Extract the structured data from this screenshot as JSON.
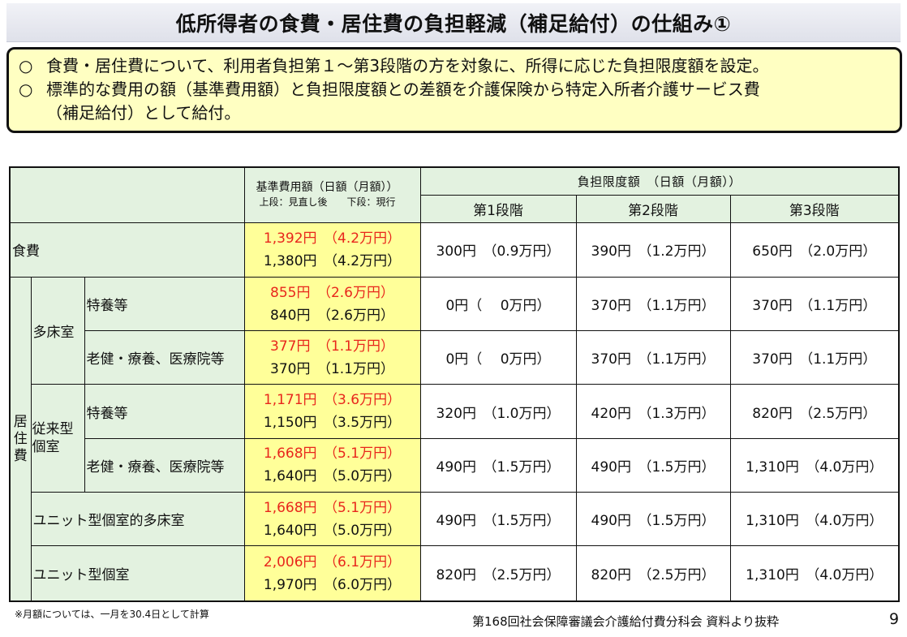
{
  "title": "低所得者の食費・居住費の負担軽減（補足給付）の仕組み①",
  "summary": {
    "bullet": "○",
    "line1": "食費・居住費について、利用者負担第１～第3段階の方を対象に、所得に応じた負担限度額を設定。",
    "line2": "標準的な費用の額（基準費用額）と負担限度額との差額を介護保険から特定入所者介護サービス費",
    "line2_cont": "（補足給付）として給付。"
  },
  "table": {
    "head_std": "基準費用額（日額（月額））",
    "head_std_note": "上段：見直し後　　下段：現行",
    "head_limit": "負担限度額　（日額（月額））",
    "stages": [
      "第1段階",
      "第2段階",
      "第3段階"
    ],
    "food": {
      "label": "食費",
      "new": "1,392円　（4.2万円）",
      "old": "1,380円　（4.2万円）",
      "limits": [
        "300円　（0.9万円）",
        "390円　（1.2万円）",
        "650円　（2.0万円）"
      ]
    },
    "housing_label": "居住費",
    "tashoshitsu": "多床室",
    "jurai": "従来型個室",
    "rows": [
      {
        "label": "特養等",
        "new": "855円　（2.6万円）",
        "old": "840円　（2.6万円）",
        "limits": [
          "0円（　 0万円）",
          "370円　（1.1万円）",
          "370円　（1.1万円）"
        ]
      },
      {
        "label": "老健・療養、医療院等",
        "new": "377円　（1.1万円）",
        "old": "370円　（1.1万円）",
        "limits": [
          "0円（　 0万円）",
          "370円　（1.1万円）",
          "370円　（1.1万円）"
        ]
      },
      {
        "label": "特養等",
        "new": "1,171円　（3.6万円）",
        "old": "1,150円　（3.5万円）",
        "limits": [
          "320円　（1.0万円）",
          "420円　（1.3万円）",
          "820円　（2.5万円）"
        ]
      },
      {
        "label": "老健・療養、医療院等",
        "new": "1,668円　（5.1万円）",
        "old": "1,640円　（5.0万円）",
        "limits": [
          "490円　（1.5万円）",
          "490円　（1.5万円）",
          "1,310円　（4.0万円）"
        ]
      },
      {
        "label": "ユニット型個室的多床室",
        "new": "1,668円　（5.1万円）",
        "old": "1,640円　（5.0万円）",
        "limits": [
          "490円　（1.5万円）",
          "490円　（1.5万円）",
          "1,310円　（4.0万円）"
        ]
      },
      {
        "label": "ユニット型個室",
        "new": "2,006円　（6.1万円）",
        "old": "1,970円　（6.0万円）",
        "limits": [
          "820円　（2.5万円）",
          "820円　（2.5万円）",
          "1,310円　（4.0万円）"
        ]
      }
    ]
  },
  "note": "※月額については、一月を30.4日として計算",
  "source": "第168回社会保障審議会介護給付費分科会 資料より抜粋",
  "page": "9"
}
